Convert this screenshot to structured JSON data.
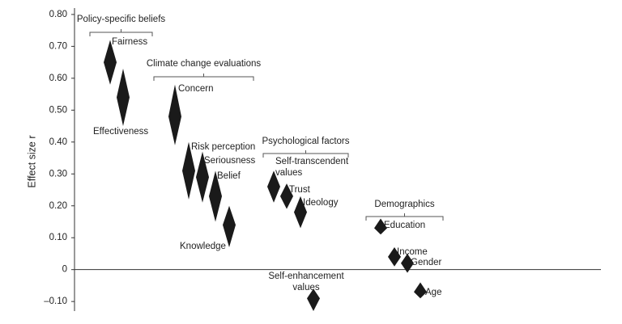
{
  "chart_data": {
    "type": "diamond",
    "y_label": "Effect size r",
    "color": "#1a1a1a",
    "ylim": [
      -0.13,
      0.82
    ],
    "yticks": [
      {
        "value": -0.1,
        "label": "–0.10"
      },
      0,
      {
        "value": 0.1,
        "label": "0.10"
      },
      {
        "value": 0.2,
        "label": "0.20"
      },
      {
        "value": 0.3,
        "label": "0.30"
      },
      {
        "value": 0.4,
        "label": "0.40"
      },
      {
        "value": 0.5,
        "label": "0.50"
      },
      {
        "value": 0.6,
        "label": "0.60"
      },
      {
        "value": 0.7,
        "label": "0.70"
      },
      {
        "value": 0.8,
        "label": "0.80"
      }
    ],
    "groups": [
      {
        "name": "Policy-specific beliefs",
        "categories": [
          "Fairness",
          "Effectiveness"
        ],
        "values": [
          0.65,
          0.54
        ],
        "ci_low": [
          0.58,
          0.45
        ],
        "ci_high": [
          0.72,
          0.63
        ]
      },
      {
        "name": "Climate change evaluations",
        "categories": [
          "Concern",
          "Risk perception",
          "Seriousness",
          "Belief",
          "Knowledge"
        ],
        "values": [
          0.48,
          0.31,
          0.29,
          0.23,
          0.14
        ],
        "ci_low": [
          0.39,
          0.22,
          0.21,
          0.15,
          0.07
        ],
        "ci_high": [
          0.58,
          0.4,
          0.37,
          0.31,
          0.2
        ]
      },
      {
        "name": "Psychological factors",
        "categories": [
          "Self-transcendent values",
          "Trust",
          "Ideology",
          "Self-enhancement values"
        ],
        "values": [
          0.26,
          0.23,
          0.18,
          -0.09
        ],
        "ci_low": [
          0.21,
          0.19,
          0.13,
          -0.13
        ],
        "ci_high": [
          0.31,
          0.27,
          0.23,
          -0.06
        ]
      },
      {
        "name": "Demographics",
        "categories": [
          "Education",
          "Income",
          "Gender",
          "Age"
        ],
        "values": [
          0.13,
          0.04,
          0.02,
          -0.07
        ],
        "ci_low": [
          0.11,
          0.01,
          -0.01,
          -0.09
        ],
        "ci_high": [
          0.16,
          0.07,
          0.05,
          -0.04
        ]
      }
    ]
  }
}
